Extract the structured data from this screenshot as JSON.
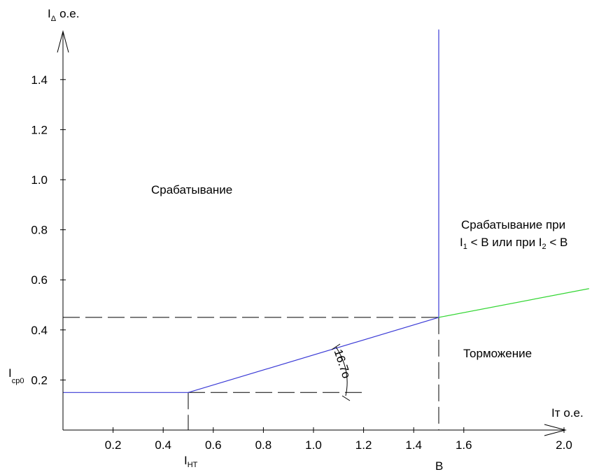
{
  "chart_data": {
    "type": "line",
    "x_axis": {
      "label_main": "Iт",
      "label_unit": "о.е.",
      "ticks": [
        "0.2",
        "0.4",
        "0.6",
        "0.8",
        "1.0",
        "1.2",
        "1.4",
        "1.6",
        "2.0"
      ],
      "tick_values": [
        0.2,
        0.4,
        0.6,
        0.8,
        1.0,
        1.2,
        1.4,
        1.6,
        2.0
      ],
      "range": [
        0,
        2.1
      ]
    },
    "y_axis": {
      "label_main": "I",
      "label_sub": "Δ",
      "label_unit": "о.е.",
      "ticks": [
        "0.2",
        "0.4",
        "0.6",
        "0.8",
        "1.0",
        "1.2",
        "1.4"
      ],
      "tick_values": [
        0.2,
        0.4,
        0.6,
        0.8,
        1.0,
        1.2,
        1.4
      ],
      "range": [
        0,
        1.6
      ]
    },
    "series": [
      {
        "values": [
          [
            0,
            0.15
          ],
          [
            0.5,
            0.15
          ],
          [
            1.5,
            0.45
          ]
        ],
        "color": "#3a3ad6"
      },
      {
        "values": [
          [
            1.5,
            0.45
          ],
          [
            1.5,
            1.6
          ]
        ],
        "color": "#3a3ad6"
      },
      {
        "values": [
          [
            1.5,
            0.45
          ],
          [
            2.1,
            0.565
          ]
        ],
        "color": "#33d633"
      }
    ],
    "reference_lines": [
      {
        "values": [
          [
            0,
            0.45
          ],
          [
            1.5,
            0.45
          ]
        ]
      },
      {
        "values": [
          [
            0.5,
            0.15
          ],
          [
            1.2,
            0.15
          ]
        ]
      },
      {
        "values": [
          [
            0.5,
            0.15
          ],
          [
            0.5,
            0
          ]
        ]
      },
      {
        "values": [
          [
            1.5,
            0.45
          ],
          [
            1.5,
            0
          ]
        ]
      }
    ],
    "special_labels": {
      "icp0": {
        "main": "I",
        "sub": "ср0",
        "value": 0.15
      },
      "iht": {
        "main": "I",
        "sub": "НТ",
        "value": 0.5
      },
      "b": {
        "text": "B",
        "value": 1.5
      }
    },
    "angle_label": "16.7",
    "angle_symbol": "o",
    "regions": {
      "operate": "Срабатывание",
      "operate_cond_line1": "Срабатывание при",
      "operate_cond_line2_parts": [
        "I",
        "1",
        " < B или при I",
        "2",
        " < B"
      ],
      "restrain": "Торможение"
    }
  }
}
